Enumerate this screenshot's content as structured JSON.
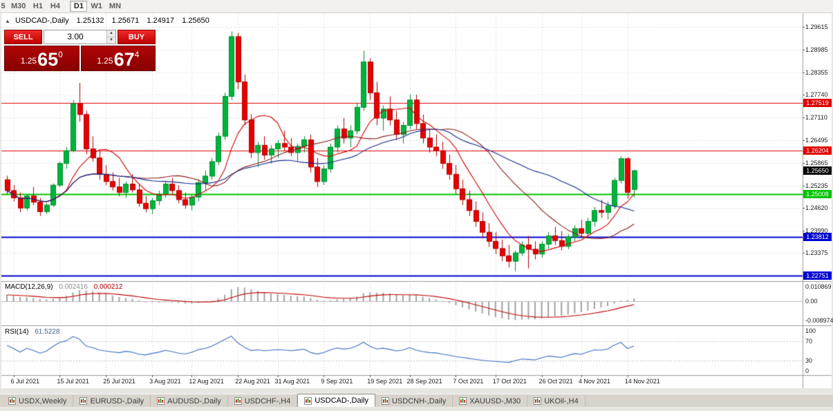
{
  "toolbar": {
    "periods": [
      "5",
      "M30",
      "H1",
      "H4",
      "D1",
      "W1",
      "MN"
    ],
    "active": "D1"
  },
  "info_line": {
    "collapse_icon": "▲",
    "symbol": "USDCAD-,Daily",
    "open": "1.25132",
    "high": "1.25671",
    "low": "1.24917",
    "close": "1.25650"
  },
  "one_click": {
    "sell_label": "SELL",
    "buy_label": "BUY",
    "lot_value": "3.00",
    "spin_up_icon": "▲",
    "spin_down_icon": "▼",
    "sell_price": {
      "prefix": "1.25",
      "big": "65",
      "sup": "0"
    },
    "buy_price": {
      "prefix": "1.25",
      "big": "67",
      "sup": "4"
    }
  },
  "chart_data": {
    "type": "candlestick",
    "symbol": "USDCAD",
    "timeframe": "Daily",
    "y_range": {
      "min": 1.2262,
      "max": 1.2996
    },
    "price_ticks": [
      "1.29615",
      "1.28985",
      "1.28355",
      "1.27740",
      "1.27110",
      "1.26495",
      "1.25865",
      "1.25235",
      "1.24620",
      "1.23990",
      "1.23375"
    ],
    "date_labels": [
      {
        "i": 1,
        "label": "6 Jul 2021"
      },
      {
        "i": 8,
        "label": "15 Jul 2021"
      },
      {
        "i": 15,
        "label": "25 Jul 2021"
      },
      {
        "i": 22,
        "label": "3 Aug 2021"
      },
      {
        "i": 28,
        "label": "12 Aug 2021"
      },
      {
        "i": 35,
        "label": "22 Aug 2021"
      },
      {
        "i": 41,
        "label": "31 Aug 2021"
      },
      {
        "i": 48,
        "label": "9 Sep 2021"
      },
      {
        "i": 55,
        "label": "19 Sep 2021"
      },
      {
        "i": 61,
        "label": "28 Sep 2021"
      },
      {
        "i": 68,
        "label": "7 Oct 2021"
      },
      {
        "i": 74,
        "label": "17 Oct 2021"
      },
      {
        "i": 81,
        "label": "26 Oct 2021"
      },
      {
        "i": 87,
        "label": "4 Nov 2021"
      },
      {
        "i": 94,
        "label": "14 Nov 2021"
      }
    ],
    "hlines": [
      {
        "price": 1.27519,
        "label": "1.27519",
        "color": "#e00000",
        "width": 1
      },
      {
        "price": 1.26204,
        "label": "1.26204",
        "color": "#e00000",
        "width": 1
      },
      {
        "price": 1.25008,
        "label": "1.25008",
        "color": "#00c400",
        "width": 2
      },
      {
        "price": 1.23812,
        "label": "1.23812",
        "color": "#0000d2",
        "width": 2
      },
      {
        "price": 1.22751,
        "label": "1.22751",
        "color": "#0000d2",
        "width": 2
      }
    ],
    "current_price": {
      "price": 1.2565,
      "label": "1.25650",
      "color": "#000000"
    },
    "moving_averages": [
      {
        "period": 8,
        "color": "#d40000"
      },
      {
        "period": 20,
        "color": "#8b1a1a"
      },
      {
        "period": 34,
        "color": "#16268c"
      }
    ],
    "colors": {
      "up": "#00b33c",
      "up_dark": "#008f2f",
      "down": "#e60000",
      "down_dark": "#b30000",
      "grid": "#cdcdcd"
    },
    "candles": [
      [
        1.254,
        1.2551,
        1.25,
        1.251
      ],
      [
        1.251,
        1.2525,
        1.248,
        1.249
      ],
      [
        1.249,
        1.2505,
        1.245,
        1.2462
      ],
      [
        1.2462,
        1.25,
        1.2455,
        1.2495
      ],
      [
        1.2495,
        1.252,
        1.247,
        1.2478
      ],
      [
        1.2478,
        1.249,
        1.244,
        1.2452
      ],
      [
        1.2452,
        1.2475,
        1.2445,
        1.247
      ],
      [
        1.247,
        1.253,
        1.2465,
        1.2525
      ],
      [
        1.2525,
        1.259,
        1.252,
        1.2585
      ],
      [
        1.2585,
        1.263,
        1.257,
        1.262
      ],
      [
        1.262,
        1.276,
        1.2615,
        1.275
      ],
      [
        1.275,
        1.2807,
        1.27,
        1.272
      ],
      [
        1.272,
        1.273,
        1.261,
        1.2625
      ],
      [
        1.2625,
        1.266,
        1.259,
        1.26
      ],
      [
        1.26,
        1.262,
        1.254,
        1.2555
      ],
      [
        1.2555,
        1.258,
        1.2525,
        1.2535
      ],
      [
        1.2535,
        1.256,
        1.251,
        1.252
      ],
      [
        1.252,
        1.2545,
        1.2495,
        1.2505
      ],
      [
        1.2505,
        1.2535,
        1.249,
        1.2528
      ],
      [
        1.2528,
        1.2555,
        1.2505,
        1.2512
      ],
      [
        1.2512,
        1.253,
        1.2465,
        1.2475
      ],
      [
        1.2475,
        1.2495,
        1.245,
        1.246
      ],
      [
        1.246,
        1.249,
        1.2445,
        1.2482
      ],
      [
        1.2482,
        1.251,
        1.247,
        1.25
      ],
      [
        1.25,
        1.2535,
        1.249,
        1.2528
      ],
      [
        1.2528,
        1.2545,
        1.25,
        1.251
      ],
      [
        1.251,
        1.2525,
        1.2475,
        1.2485
      ],
      [
        1.2485,
        1.2505,
        1.246,
        1.247
      ],
      [
        1.247,
        1.25,
        1.2455,
        1.2492
      ],
      [
        1.2492,
        1.254,
        1.248,
        1.2532
      ],
      [
        1.2532,
        1.2565,
        1.251,
        1.255
      ],
      [
        1.255,
        1.26,
        1.254,
        1.259
      ],
      [
        1.259,
        1.267,
        1.258,
        1.266
      ],
      [
        1.266,
        1.278,
        1.265,
        1.277
      ],
      [
        1.277,
        1.2949,
        1.276,
        1.2935
      ],
      [
        1.2935,
        1.2945,
        1.279,
        1.281
      ],
      [
        1.281,
        1.283,
        1.269,
        1.2705
      ],
      [
        1.2705,
        1.272,
        1.26,
        1.2615
      ],
      [
        1.2615,
        1.2645,
        1.2575,
        1.2635
      ],
      [
        1.2635,
        1.266,
        1.2595,
        1.2608
      ],
      [
        1.2608,
        1.2635,
        1.2585,
        1.2625
      ],
      [
        1.2625,
        1.265,
        1.26,
        1.264
      ],
      [
        1.264,
        1.2675,
        1.262,
        1.263
      ],
      [
        1.263,
        1.2655,
        1.2605,
        1.2615
      ],
      [
        1.2615,
        1.264,
        1.259,
        1.2632
      ],
      [
        1.2632,
        1.266,
        1.2615,
        1.265
      ],
      [
        1.265,
        1.2665,
        1.256,
        1.2575
      ],
      [
        1.2575,
        1.26,
        1.252,
        1.2535
      ],
      [
        1.2535,
        1.258,
        1.2525,
        1.257
      ],
      [
        1.257,
        1.264,
        1.256,
        1.263
      ],
      [
        1.263,
        1.269,
        1.2615,
        1.268
      ],
      [
        1.268,
        1.271,
        1.264,
        1.2655
      ],
      [
        1.2655,
        1.269,
        1.263,
        1.2675
      ],
      [
        1.2675,
        1.275,
        1.2665,
        1.274
      ],
      [
        1.274,
        1.2896,
        1.273,
        1.2865
      ],
      [
        1.2865,
        1.2875,
        1.276,
        1.278
      ],
      [
        1.278,
        1.281,
        1.269,
        1.271
      ],
      [
        1.271,
        1.2745,
        1.2675,
        1.2735
      ],
      [
        1.2735,
        1.277,
        1.269,
        1.2705
      ],
      [
        1.2705,
        1.273,
        1.265,
        1.2665
      ],
      [
        1.2665,
        1.27,
        1.264,
        1.269
      ],
      [
        1.269,
        1.2775,
        1.268,
        1.276
      ],
      [
        1.276,
        1.2775,
        1.268,
        1.2695
      ],
      [
        1.2695,
        1.272,
        1.264,
        1.2655
      ],
      [
        1.2655,
        1.268,
        1.2615,
        1.263
      ],
      [
        1.263,
        1.2665,
        1.2605,
        1.262
      ],
      [
        1.262,
        1.2645,
        1.257,
        1.2585
      ],
      [
        1.2585,
        1.261,
        1.254,
        1.2555
      ],
      [
        1.2555,
        1.258,
        1.25,
        1.2515
      ],
      [
        1.2515,
        1.254,
        1.247,
        1.2485
      ],
      [
        1.2485,
        1.251,
        1.244,
        1.2455
      ],
      [
        1.2455,
        1.248,
        1.241,
        1.2425
      ],
      [
        1.2425,
        1.245,
        1.238,
        1.2395
      ],
      [
        1.2395,
        1.242,
        1.2355,
        1.237
      ],
      [
        1.237,
        1.2395,
        1.2335,
        1.235
      ],
      [
        1.235,
        1.2375,
        1.2315,
        1.233
      ],
      [
        1.233,
        1.236,
        1.2298,
        1.2315
      ],
      [
        1.2315,
        1.2345,
        1.2287,
        1.2338
      ],
      [
        1.2338,
        1.237,
        1.233,
        1.236
      ],
      [
        1.236,
        1.2385,
        1.2295,
        1.2348
      ],
      [
        1.2348,
        1.237,
        1.232,
        1.2335
      ],
      [
        1.2335,
        1.237,
        1.2325,
        1.2362
      ],
      [
        1.2362,
        1.2395,
        1.235,
        1.2385
      ],
      [
        1.2385,
        1.241,
        1.236,
        1.2372
      ],
      [
        1.2372,
        1.2398,
        1.2345,
        1.2356
      ],
      [
        1.2356,
        1.239,
        1.2348,
        1.2382
      ],
      [
        1.2382,
        1.2415,
        1.237,
        1.2405
      ],
      [
        1.2405,
        1.243,
        1.238,
        1.2392
      ],
      [
        1.2392,
        1.2435,
        1.2385,
        1.2425
      ],
      [
        1.2425,
        1.2465,
        1.241,
        1.2455
      ],
      [
        1.2455,
        1.2485,
        1.2435,
        1.245
      ],
      [
        1.245,
        1.248,
        1.243,
        1.2468
      ],
      [
        1.2468,
        1.2545,
        1.246,
        1.2538
      ],
      [
        1.2538,
        1.2605,
        1.253,
        1.2598
      ],
      [
        1.2598,
        1.2602,
        1.2488,
        1.2505
      ],
      [
        1.25132,
        1.25671,
        1.24917,
        1.2565
      ]
    ]
  },
  "macd": {
    "name": "MACD(12,26,9)",
    "main_value": "0.002416",
    "signal_value": "0.000212",
    "axis_top": "0.010869",
    "axis_zero": "0.00",
    "axis_bottom": "-0.008974",
    "histogram_color": "#a2a2a2",
    "signal_color": "#c00000"
  },
  "rsi": {
    "name": "RSI(14)",
    "value": "61.5228",
    "axis": [
      "100",
      "70",
      "30",
      "0"
    ],
    "levels": [
      70,
      30
    ],
    "line_color": "#3a6fc4"
  },
  "tabs": {
    "active_index": 4,
    "items": [
      "USDX,Weekly",
      "EURUSD-,Daily",
      "AUDUSD-,Daily",
      "USDCHF-,H4",
      "USDCAD-,Daily",
      "USDCNH-,Daily",
      "XAUUSD-,M30",
      "UKOil-,H4"
    ]
  }
}
